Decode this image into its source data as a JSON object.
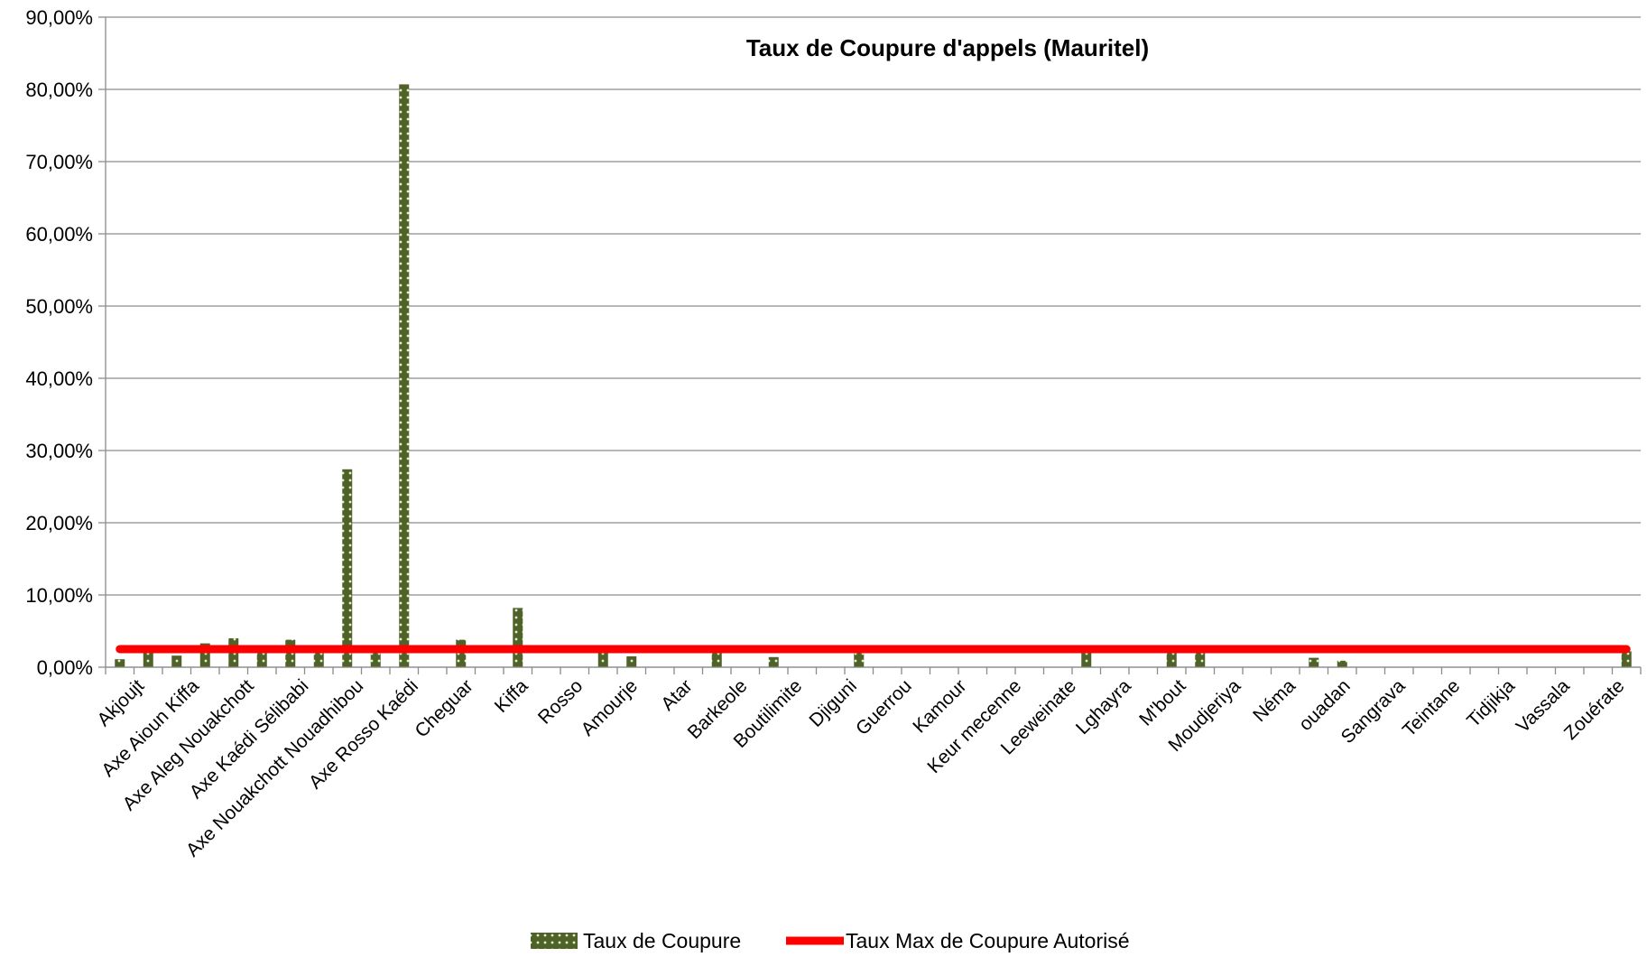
{
  "chart_data": {
    "type": "bar",
    "title": "Taux de Coupure d'appels (Mauritel)",
    "xlabel": "",
    "ylabel": "",
    "ylim": [
      0,
      0.9
    ],
    "y_ticks": [
      "0,00%",
      "10,00%",
      "20,00%",
      "30,00%",
      "40,00%",
      "50,00%",
      "60,00%",
      "70,00%",
      "80,00%",
      "90,00%"
    ],
    "grid": true,
    "legend_position": "bottom",
    "categories": [
      "Akjoujt",
      "Axe Aioun Kiffa",
      "Axe Aleg Nouakchott",
      "Axe Kaédi Sélibabi",
      "Axe Nouakchott Nouadhibou",
      "Axe Rosso Kaédi",
      "Cheguar",
      "Kiffa",
      "Rosso",
      "Amourje",
      "Atar",
      "Barkeole",
      "Boutilimite",
      "Djiguni",
      "Guerrou",
      "Kamour",
      "Keur mecenne",
      "Leeweinate",
      "Lghayra",
      "M'bout",
      "Moudjeriya",
      "Néma",
      "ouadan",
      "Sangrava",
      "Teintane",
      "Tidjikja",
      "Vassala",
      "Zouérate"
    ],
    "bar_values": [
      0.011,
      0.021,
      0.016,
      0.033,
      0.04,
      0.022,
      0.038,
      0.022,
      0.274,
      0.022,
      0.807,
      0.038,
      0.082,
      0.024,
      0.015,
      0.021,
      0.014,
      0.022,
      0.023,
      0.024,
      0.024,
      0.013,
      0.009,
      0.022
    ],
    "bar_slots": [
      0,
      1,
      2,
      3,
      4,
      5,
      6,
      7,
      8,
      9,
      10,
      12,
      14,
      17,
      18,
      21,
      23,
      26,
      34,
      37,
      38,
      42,
      43,
      53
    ],
    "slot_count": 54,
    "series": [
      {
        "name": "Taux de Coupure",
        "kind": "bar",
        "color": "#4f6228"
      },
      {
        "name": "Taux Max de Coupure Autorisé",
        "kind": "line",
        "color": "#ff0000",
        "value": 0.025
      }
    ]
  }
}
